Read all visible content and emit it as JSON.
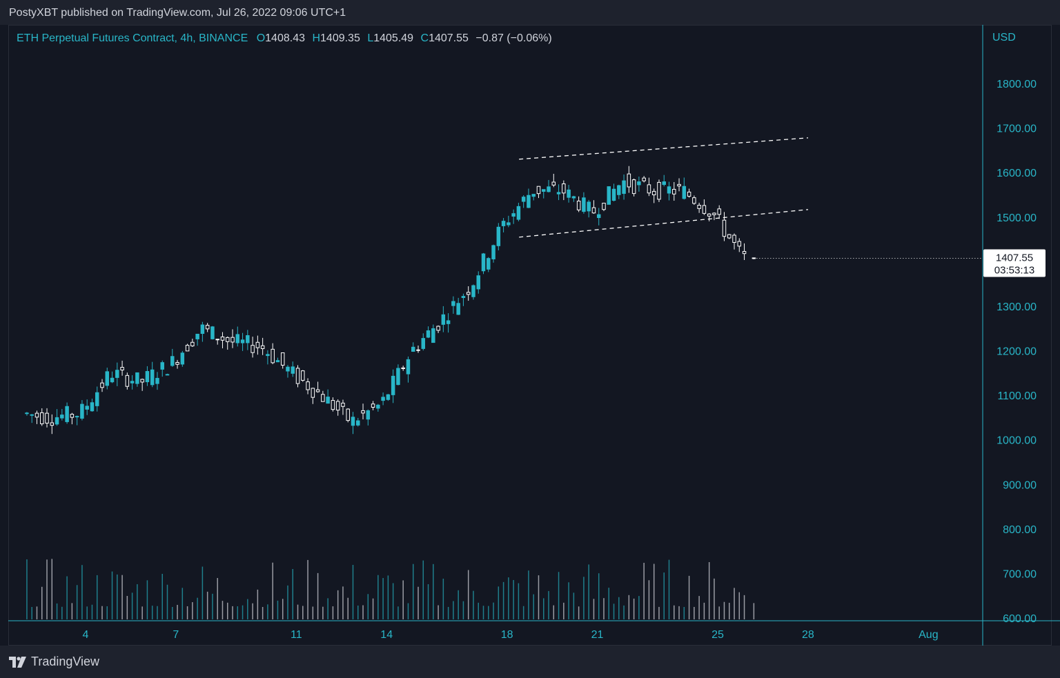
{
  "header": {
    "published": "PostyXBT published on TradingView.com, Jul 26, 2022 09:06 UTC+1"
  },
  "legend": {
    "symbol": "ETH Perpetual Futures Contract, 4h, BINANCE",
    "o_label": "O",
    "o_value": "1408.43",
    "h_label": "H",
    "h_value": "1409.35",
    "l_label": "L",
    "l_value": "1405.49",
    "c_label": "C",
    "c_value": "1407.55",
    "change": "−0.87 (−0.06%)"
  },
  "price_axis": {
    "currency": "USD",
    "ticks": [
      "1800.00",
      "1700.00",
      "1600.00",
      "1500.00",
      "1300.00",
      "1200.00",
      "1100.00",
      "1000.00",
      "900.00",
      "800.00",
      "700.00",
      "600.00"
    ],
    "last_price": "1407.55",
    "countdown": "03:53:13"
  },
  "time_axis": {
    "ticks": [
      "4",
      "7",
      "11",
      "14",
      "18",
      "21",
      "25",
      "28",
      "Aug"
    ]
  },
  "footer": {
    "brand": "TradingView"
  },
  "colors": {
    "background": "#131722",
    "bull": "#29b6c8",
    "bear": "#ffffff",
    "text": "#d1d4dc",
    "axis_text": "#29b6c8"
  },
  "chart_data": {
    "type": "candlestick",
    "title": "ETH Perpetual Futures Contract, 4h, BINANCE",
    "y_axis_unit": "USD",
    "ylim": [
      600,
      1850
    ],
    "x_ticks": [
      "4",
      "7",
      "11",
      "14",
      "18",
      "21",
      "25",
      "28",
      "Aug"
    ],
    "series": [
      {
        "name": "ETH Perpetual Futures Contract",
        "anchors": [
          {
            "date": "Jul 2",
            "price": 1060
          },
          {
            "date": "Jul 3",
            "price": 1050
          },
          {
            "date": "Jul 4",
            "price": 1060
          },
          {
            "date": "Jul 5",
            "price": 1150
          },
          {
            "date": "Jul 6",
            "price": 1130
          },
          {
            "date": "Jul 7",
            "price": 1170
          },
          {
            "date": "Jul 8",
            "price": 1250
          },
          {
            "date": "Jul 9",
            "price": 1220
          },
          {
            "date": "Jul 10",
            "price": 1210
          },
          {
            "date": "Jul 11",
            "price": 1150
          },
          {
            "date": "Jul 12",
            "price": 1100
          },
          {
            "date": "Jul 13",
            "price": 1040
          },
          {
            "date": "Jul 14",
            "price": 1080
          },
          {
            "date": "Jul 15",
            "price": 1200
          },
          {
            "date": "Jul 16",
            "price": 1270
          },
          {
            "date": "Jul 17",
            "price": 1350
          },
          {
            "date": "Jul 18",
            "price": 1480
          },
          {
            "date": "Jul 19",
            "price": 1560
          },
          {
            "date": "Jul 20",
            "price": 1560
          },
          {
            "date": "Jul 21",
            "price": 1510
          },
          {
            "date": "Jul 22",
            "price": 1580
          },
          {
            "date": "Jul 23",
            "price": 1560
          },
          {
            "date": "Jul 24",
            "price": 1560
          },
          {
            "date": "Jul 25",
            "price": 1510
          },
          {
            "date": "Jul 26",
            "price": 1408
          }
        ],
        "last": {
          "open": 1408.43,
          "high": 1409.35,
          "low": 1405.49,
          "close": 1407.55
        }
      }
    ],
    "channel_lines": [
      {
        "from": {
          "date": "Jul 18",
          "price": 1630
        },
        "to": {
          "date": "Jul 28",
          "price": 1678
        }
      },
      {
        "from": {
          "date": "Jul 18",
          "price": 1455
        },
        "to": {
          "date": "Jul 28",
          "price": 1517
        }
      }
    ],
    "volume": {
      "note": "volume bars shown at bottom of chart",
      "max_relative": 1.0
    }
  }
}
